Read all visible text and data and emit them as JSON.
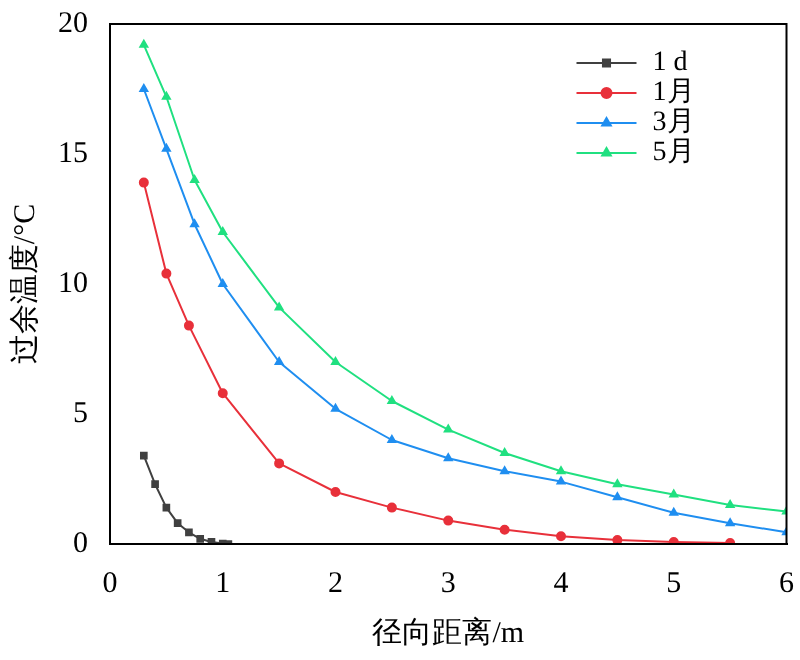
{
  "chart_data": {
    "type": "line",
    "xlabel": "径向距离/m",
    "ylabel": "过余温度/°C",
    "xlim": [
      0,
      6
    ],
    "xticks": [
      0,
      1,
      2,
      3,
      4,
      5,
      6
    ],
    "ylim": [
      0,
      20
    ],
    "yticks": [
      0,
      5,
      10,
      15,
      20
    ],
    "grid": false,
    "legend": "top right",
    "line_style": "solid",
    "series": [
      {
        "name": "1 d",
        "color": "#404040",
        "marker": "square",
        "x": [
          0.3,
          0.4,
          0.5,
          0.6,
          0.7,
          0.8,
          0.9,
          1.0,
          1.05
        ],
        "values": [
          3.4,
          2.3,
          1.4,
          0.8,
          0.45,
          0.2,
          0.08,
          0.02,
          0
        ]
      },
      {
        "name": "1月",
        "color": "#e8303a",
        "marker": "circle",
        "x": [
          0.3,
          0.5,
          0.7,
          1,
          1.5,
          2,
          2.5,
          3,
          3.5,
          4,
          4.5,
          5,
          5.5
        ],
        "values": [
          13.9,
          10.4,
          8.4,
          5.8,
          3.1,
          2.0,
          1.4,
          0.9,
          0.55,
          0.3,
          0.15,
          0.08,
          0.04
        ]
      },
      {
        "name": "3月",
        "color": "#1f8ef0",
        "marker": "triangle",
        "x": [
          0.3,
          0.5,
          0.75,
          1,
          1.5,
          2,
          2.5,
          3,
          3.5,
          4,
          4.5,
          5,
          5.5,
          6
        ],
        "values": [
          17.5,
          15.2,
          12.3,
          10.0,
          7.0,
          5.2,
          4.0,
          3.3,
          2.8,
          2.4,
          1.8,
          1.2,
          0.8,
          0.45
        ]
      },
      {
        "name": "5月",
        "color": "#20e080",
        "marker": "triangle",
        "x": [
          0.3,
          0.5,
          0.75,
          1,
          1.5,
          2,
          2.5,
          3,
          3.5,
          4,
          4.5,
          5,
          5.5,
          6
        ],
        "values": [
          19.2,
          17.2,
          14.0,
          12.0,
          9.1,
          7.0,
          5.5,
          4.4,
          3.5,
          2.8,
          2.3,
          1.9,
          1.5,
          1.25
        ]
      }
    ]
  }
}
